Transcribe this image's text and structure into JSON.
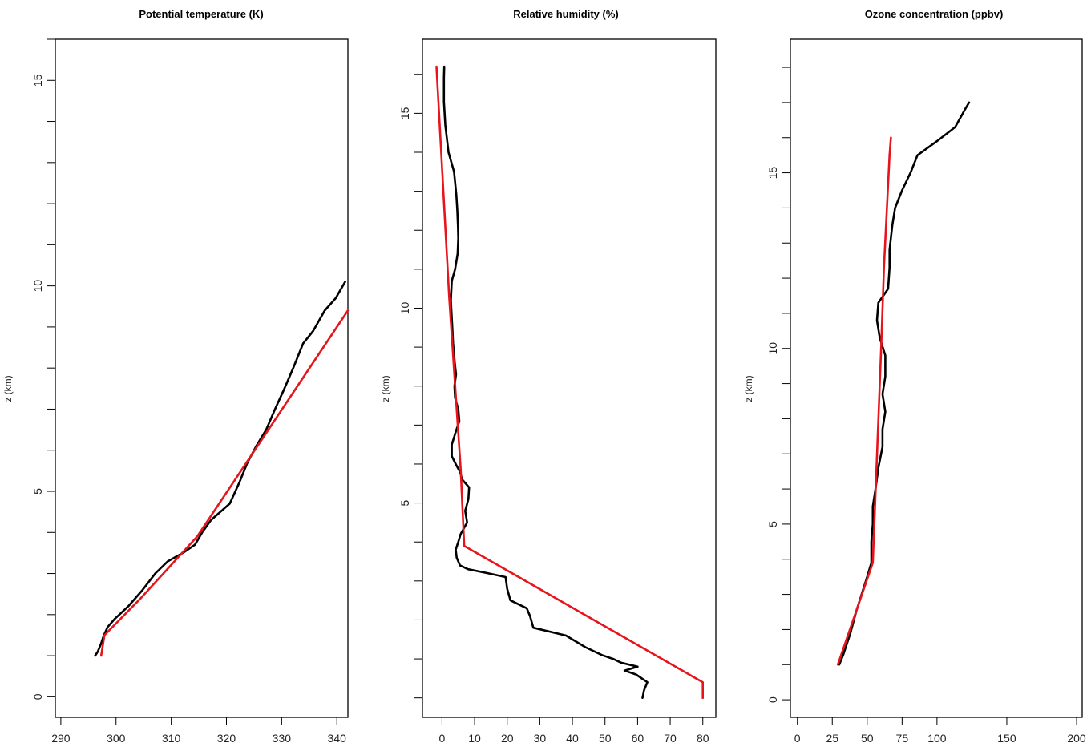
{
  "chart_data": [
    {
      "type": "line",
      "title": "Potential temperature (K)",
      "xlabel": "",
      "ylabel": "z (km)",
      "xlim": [
        289,
        342
      ],
      "ylim": [
        -0.5,
        16.0
      ],
      "xticks": [
        290,
        300,
        310,
        320,
        330,
        340
      ],
      "yticks": [
        0,
        5,
        10,
        15
      ],
      "series": [
        {
          "color": "#000000",
          "points": [
            [
              296.2,
              1.0
            ],
            [
              296.7,
              1.1
            ],
            [
              297.3,
              1.3
            ],
            [
              297.8,
              1.5
            ],
            [
              298.5,
              1.7
            ],
            [
              299.8,
              1.9
            ],
            [
              302.2,
              2.2
            ],
            [
              304.8,
              2.6
            ],
            [
              307.1,
              3.0
            ],
            [
              309.4,
              3.3
            ],
            [
              312.1,
              3.5
            ],
            [
              314.3,
              3.7
            ],
            [
              315.6,
              4.0
            ],
            [
              317.2,
              4.3
            ],
            [
              320.6,
              4.7
            ],
            [
              322.3,
              5.2
            ],
            [
              323.8,
              5.7
            ],
            [
              325.4,
              6.1
            ],
            [
              327.2,
              6.5
            ],
            [
              328.8,
              7.0
            ],
            [
              330.5,
              7.5
            ],
            [
              332.1,
              8.0
            ],
            [
              333.9,
              8.6
            ],
            [
              335.7,
              8.9
            ],
            [
              337.8,
              9.4
            ],
            [
              339.8,
              9.7
            ],
            [
              341.5,
              10.1
            ]
          ]
        },
        {
          "color": "#e8141c",
          "points": [
            [
              297.3,
              1.0
            ],
            [
              297.9,
              1.5
            ],
            [
              304.5,
              2.4
            ],
            [
              314.7,
              3.9
            ],
            [
              342.0,
              9.4
            ]
          ]
        }
      ]
    },
    {
      "type": "line",
      "title": "Relative humidity (%)",
      "xlabel": "",
      "ylabel": "z (km)",
      "xlim": [
        -6,
        84
      ],
      "ylim": [
        -0.5,
        16.9
      ],
      "xticks": [
        0,
        10,
        20,
        30,
        40,
        50,
        60,
        70,
        80
      ],
      "yticks": [
        5,
        10,
        15
      ],
      "series": [
        {
          "color": "#000000",
          "points": [
            [
              61.5,
              0.0
            ],
            [
              62.0,
              0.2
            ],
            [
              63.0,
              0.4
            ],
            [
              59.5,
              0.6
            ],
            [
              56.0,
              0.7
            ],
            [
              60.0,
              0.8
            ],
            [
              55.0,
              0.9
            ],
            [
              52.5,
              1.0
            ],
            [
              49.0,
              1.1
            ],
            [
              44.0,
              1.3
            ],
            [
              38.0,
              1.6
            ],
            [
              28.0,
              1.8
            ],
            [
              27.0,
              2.1
            ],
            [
              26.0,
              2.3
            ],
            [
              21.0,
              2.5
            ],
            [
              20.0,
              2.8
            ],
            [
              19.5,
              3.1
            ],
            [
              14.0,
              3.2
            ],
            [
              8.0,
              3.3
            ],
            [
              5.5,
              3.4
            ],
            [
              4.5,
              3.6
            ],
            [
              4.2,
              3.8
            ],
            [
              5.0,
              4.0
            ],
            [
              5.7,
              4.2
            ],
            [
              7.7,
              4.5
            ],
            [
              7.1,
              4.8
            ],
            [
              8.1,
              5.1
            ],
            [
              8.3,
              5.4
            ],
            [
              6.2,
              5.6
            ],
            [
              5.5,
              5.8
            ],
            [
              4.2,
              6.0
            ],
            [
              3.0,
              6.2
            ],
            [
              3.0,
              6.5
            ],
            [
              4.1,
              6.8
            ],
            [
              5.3,
              7.1
            ],
            [
              5.0,
              7.4
            ],
            [
              4.0,
              7.7
            ],
            [
              3.8,
              8.0
            ],
            [
              4.3,
              8.3
            ],
            [
              3.9,
              8.6
            ],
            [
              3.4,
              9.1
            ],
            [
              3.1,
              9.6
            ],
            [
              2.7,
              10.2
            ],
            [
              3.0,
              10.7
            ],
            [
              4.0,
              11.0
            ],
            [
              4.8,
              11.4
            ],
            [
              5.0,
              11.8
            ],
            [
              4.9,
              12.1
            ],
            [
              4.7,
              12.5
            ],
            [
              4.4,
              12.9
            ],
            [
              3.7,
              13.5
            ],
            [
              2.0,
              14.0
            ],
            [
              1.0,
              14.7
            ],
            [
              0.6,
              15.3
            ],
            [
              0.6,
              15.9
            ],
            [
              0.7,
              16.2
            ]
          ]
        },
        {
          "color": "#e8141c",
          "points": [
            [
              80.0,
              0.0
            ],
            [
              80.0,
              0.4
            ],
            [
              6.8,
              3.9
            ],
            [
              5.7,
              5.9
            ],
            [
              2.2,
              10.3
            ],
            [
              -1.7,
              16.2
            ]
          ]
        }
      ]
    },
    {
      "type": "line",
      "title": "Ozone concentration (ppbv)",
      "xlabel": "",
      "ylabel": "z (km)",
      "xlim": [
        -5,
        204
      ],
      "ylim": [
        -0.5,
        18.8
      ],
      "xticks": [
        0,
        25,
        50,
        75,
        100,
        150,
        200
      ],
      "yticks": [
        0,
        5,
        10,
        15
      ],
      "series": [
        {
          "color": "#000000",
          "points": [
            [
              30,
              1.0
            ],
            [
              33,
              1.3
            ],
            [
              38,
              1.9
            ],
            [
              42,
              2.5
            ],
            [
              46,
              3.0
            ],
            [
              50,
              3.5
            ],
            [
              53,
              3.9
            ],
            [
              53,
              4.5
            ],
            [
              54,
              5.0
            ],
            [
              54,
              5.5
            ],
            [
              56,
              6.0
            ],
            [
              58,
              6.6
            ],
            [
              61,
              7.2
            ],
            [
              61,
              7.7
            ],
            [
              63,
              8.2
            ],
            [
              61,
              8.7
            ],
            [
              63,
              9.2
            ],
            [
              63,
              9.8
            ],
            [
              59,
              10.3
            ],
            [
              57,
              10.8
            ],
            [
              58,
              11.3
            ],
            [
              65,
              11.7
            ],
            [
              66,
              12.3
            ],
            [
              66,
              12.8
            ],
            [
              68,
              13.5
            ],
            [
              70,
              14.0
            ],
            [
              75,
              14.5
            ],
            [
              81,
              15.0
            ],
            [
              86,
              15.5
            ],
            [
              100,
              15.9
            ],
            [
              113,
              16.3
            ],
            [
              120,
              16.8
            ],
            [
              123,
              17.0
            ]
          ]
        },
        {
          "color": "#e8141c",
          "points": [
            [
              29,
              1.0
            ],
            [
              54,
              3.9
            ],
            [
              60,
              10.0
            ],
            [
              62,
              12.3
            ],
            [
              66,
              15.5
            ],
            [
              67,
              16.0
            ]
          ]
        }
      ]
    }
  ]
}
